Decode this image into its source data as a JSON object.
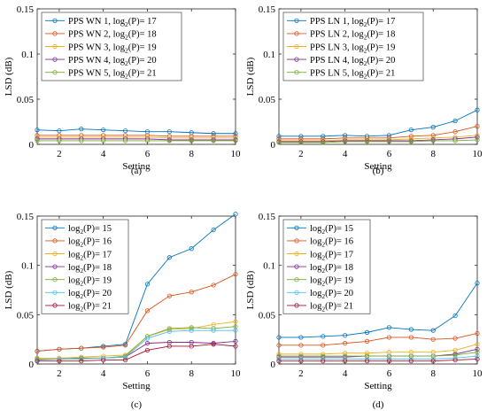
{
  "chart_data": [
    {
      "type": "line",
      "caption": "(a)",
      "xlabel": "Setting",
      "ylabel": "LSD (dB)",
      "xlim": [
        1,
        10
      ],
      "ylim": [
        0,
        0.15
      ],
      "xticks": [
        2,
        4,
        6,
        8,
        10
      ],
      "yticks": [
        0,
        0.05,
        0.1,
        0.15
      ],
      "ytick_labels": [
        "0",
        "0.05",
        "0.1",
        "0.15"
      ],
      "legend_position": "top-left",
      "x": [
        1,
        2,
        3,
        4,
        5,
        6,
        7,
        8,
        9,
        10
      ],
      "series": [
        {
          "name_main": "PPS WN 1, log",
          "name_sub": "2",
          "name_tail": "(P)= 17",
          "color": "#0072bd",
          "values": [
            0.016,
            0.015,
            0.017,
            0.016,
            0.015,
            0.014,
            0.014,
            0.013,
            0.012,
            0.012
          ]
        },
        {
          "name_main": "PPS WN 2, log",
          "name_sub": "2",
          "name_tail": "(P)= 18",
          "color": "#d95319",
          "values": [
            0.01,
            0.01,
            0.01,
            0.01,
            0.01,
            0.01,
            0.009,
            0.009,
            0.009,
            0.009
          ]
        },
        {
          "name_main": "PPS WN 3, log",
          "name_sub": "2",
          "name_tail": "(P)= 19",
          "color": "#edb120",
          "values": [
            0.008,
            0.008,
            0.008,
            0.008,
            0.008,
            0.008,
            0.007,
            0.007,
            0.007,
            0.007
          ]
        },
        {
          "name_main": "PPS WN 4, log",
          "name_sub": "2",
          "name_tail": "(P)= 20",
          "color": "#7e2f8e",
          "values": [
            0.006,
            0.006,
            0.006,
            0.006,
            0.006,
            0.006,
            0.005,
            0.005,
            0.005,
            0.005
          ]
        },
        {
          "name_main": "PPS WN 5, log",
          "name_sub": "2",
          "name_tail": "(P)= 21",
          "color": "#77ac30",
          "values": [
            0.004,
            0.004,
            0.004,
            0.004,
            0.004,
            0.004,
            0.004,
            0.004,
            0.004,
            0.004
          ]
        }
      ]
    },
    {
      "type": "line",
      "caption": "(b)",
      "xlabel": "Setting",
      "ylabel": "LSD (dB)",
      "xlim": [
        1,
        10
      ],
      "ylim": [
        0,
        0.15
      ],
      "xticks": [
        2,
        4,
        6,
        8,
        10
      ],
      "yticks": [
        0,
        0.05,
        0.1,
        0.15
      ],
      "ytick_labels": [
        "0",
        "0.05",
        "0.1",
        "0.15"
      ],
      "legend_position": "top-left",
      "x": [
        1,
        2,
        3,
        4,
        5,
        6,
        7,
        8,
        9,
        10
      ],
      "series": [
        {
          "name_main": "PPS LN 1, log",
          "name_sub": "2",
          "name_tail": "(P)= 17",
          "color": "#0072bd",
          "values": [
            0.009,
            0.009,
            0.009,
            0.01,
            0.009,
            0.01,
            0.016,
            0.019,
            0.026,
            0.038
          ]
        },
        {
          "name_main": "PPS LN 2, log",
          "name_sub": "2",
          "name_tail": "(P)= 18",
          "color": "#d95319",
          "values": [
            0.006,
            0.006,
            0.006,
            0.007,
            0.007,
            0.007,
            0.009,
            0.01,
            0.014,
            0.02
          ]
        },
        {
          "name_main": "PPS LN 3, log",
          "name_sub": "2",
          "name_tail": "(P)= 19",
          "color": "#edb120",
          "values": [
            0.004,
            0.004,
            0.004,
            0.005,
            0.005,
            0.005,
            0.006,
            0.007,
            0.008,
            0.01
          ]
        },
        {
          "name_main": "PPS LN 4, log",
          "name_sub": "2",
          "name_tail": "(P)= 20",
          "color": "#7e2f8e",
          "values": [
            0.003,
            0.003,
            0.003,
            0.004,
            0.004,
            0.004,
            0.004,
            0.005,
            0.006,
            0.008
          ]
        },
        {
          "name_main": "PPS LN 5, log",
          "name_sub": "2",
          "name_tail": "(P)= 21",
          "color": "#77ac30",
          "values": [
            0.002,
            0.002,
            0.002,
            0.003,
            0.003,
            0.003,
            0.003,
            0.004,
            0.004,
            0.005
          ]
        }
      ]
    },
    {
      "type": "line",
      "caption": "(c)",
      "xlabel": "Setting",
      "ylabel": "LSD (dB)",
      "xlim": [
        1,
        10
      ],
      "ylim": [
        0,
        0.15
      ],
      "xticks": [
        2,
        4,
        6,
        8,
        10
      ],
      "yticks": [
        0,
        0.05,
        0.1,
        0.15
      ],
      "ytick_labels": [
        "0",
        "0.05",
        "0.1",
        "0.15"
      ],
      "legend_position": "top-left",
      "x": [
        1,
        2,
        3,
        4,
        5,
        6,
        7,
        8,
        9,
        10
      ],
      "series": [
        {
          "name_main": "log",
          "name_sub": "2",
          "name_tail": "(P)= 15",
          "color": "#0072bd",
          "values": [
            0.013,
            0.015,
            0.016,
            0.018,
            0.02,
            0.081,
            0.108,
            0.117,
            0.136,
            0.152
          ]
        },
        {
          "name_main": "log",
          "name_sub": "2",
          "name_tail": "(P)= 16",
          "color": "#d95319",
          "values": [
            0.013,
            0.015,
            0.016,
            0.017,
            0.019,
            0.054,
            0.069,
            0.073,
            0.08,
            0.091
          ]
        },
        {
          "name_main": "log",
          "name_sub": "2",
          "name_tail": "(P)= 17",
          "color": "#edb120",
          "values": [
            0.006,
            0.006,
            0.007,
            0.008,
            0.009,
            0.028,
            0.035,
            0.036,
            0.04,
            0.043
          ]
        },
        {
          "name_main": "log",
          "name_sub": "2",
          "name_tail": "(P)= 18",
          "color": "#7e2f8e",
          "values": [
            0.005,
            0.005,
            0.006,
            0.006,
            0.007,
            0.021,
            0.022,
            0.022,
            0.021,
            0.023
          ]
        },
        {
          "name_main": "log",
          "name_sub": "2",
          "name_tail": "(P)= 19",
          "color": "#77ac30",
          "values": [
            0.005,
            0.005,
            0.006,
            0.006,
            0.008,
            0.028,
            0.036,
            0.037,
            0.036,
            0.038
          ]
        },
        {
          "name_main": "log",
          "name_sub": "2",
          "name_tail": "(P)= 20",
          "color": "#4dbeee",
          "values": [
            0.004,
            0.005,
            0.005,
            0.006,
            0.007,
            0.026,
            0.033,
            0.034,
            0.034,
            0.034
          ]
        },
        {
          "name_main": "log",
          "name_sub": "2",
          "name_tail": "(P)= 21",
          "color": "#a2142f",
          "values": [
            0.003,
            0.003,
            0.003,
            0.004,
            0.004,
            0.014,
            0.018,
            0.018,
            0.02,
            0.018
          ]
        }
      ]
    },
    {
      "type": "line",
      "caption": "(d)",
      "xlabel": "Setting",
      "ylabel": "LSD (dB)",
      "xlim": [
        1,
        10
      ],
      "ylim": [
        0,
        0.15
      ],
      "xticks": [
        2,
        4,
        6,
        8,
        10
      ],
      "yticks": [
        0,
        0.05,
        0.1,
        0.15
      ],
      "ytick_labels": [
        "0",
        "0.05",
        "0.1",
        "0.15"
      ],
      "legend_position": "top-left",
      "x": [
        1,
        2,
        3,
        4,
        5,
        6,
        7,
        8,
        9,
        10
      ],
      "series": [
        {
          "name_main": "log",
          "name_sub": "2",
          "name_tail": "(P)= 15",
          "color": "#0072bd",
          "values": [
            0.027,
            0.027,
            0.028,
            0.029,
            0.032,
            0.037,
            0.035,
            0.034,
            0.049,
            0.082
          ]
        },
        {
          "name_main": "log",
          "name_sub": "2",
          "name_tail": "(P)= 16",
          "color": "#d95319",
          "values": [
            0.019,
            0.019,
            0.019,
            0.021,
            0.023,
            0.027,
            0.027,
            0.025,
            0.026,
            0.031
          ]
        },
        {
          "name_main": "log",
          "name_sub": "2",
          "name_tail": "(P)= 17",
          "color": "#edb120",
          "values": [
            0.01,
            0.01,
            0.01,
            0.011,
            0.011,
            0.012,
            0.012,
            0.012,
            0.014,
            0.02
          ]
        },
        {
          "name_main": "log",
          "name_sub": "2",
          "name_tail": "(P)= 18",
          "color": "#7e2f8e",
          "values": [
            0.007,
            0.007,
            0.007,
            0.007,
            0.008,
            0.008,
            0.008,
            0.008,
            0.01,
            0.015
          ]
        },
        {
          "name_main": "log",
          "name_sub": "2",
          "name_tail": "(P)= 19",
          "color": "#77ac30",
          "values": [
            0.008,
            0.008,
            0.008,
            0.008,
            0.008,
            0.008,
            0.008,
            0.008,
            0.009,
            0.012
          ]
        },
        {
          "name_main": "log",
          "name_sub": "2",
          "name_tail": "(P)= 20",
          "color": "#4dbeee",
          "values": [
            0.005,
            0.005,
            0.005,
            0.005,
            0.005,
            0.005,
            0.005,
            0.005,
            0.006,
            0.008
          ]
        },
        {
          "name_main": "log",
          "name_sub": "2",
          "name_tail": "(P)= 21",
          "color": "#a2142f",
          "values": [
            0.003,
            0.003,
            0.003,
            0.003,
            0.003,
            0.003,
            0.003,
            0.003,
            0.004,
            0.005
          ]
        }
      ]
    }
  ]
}
